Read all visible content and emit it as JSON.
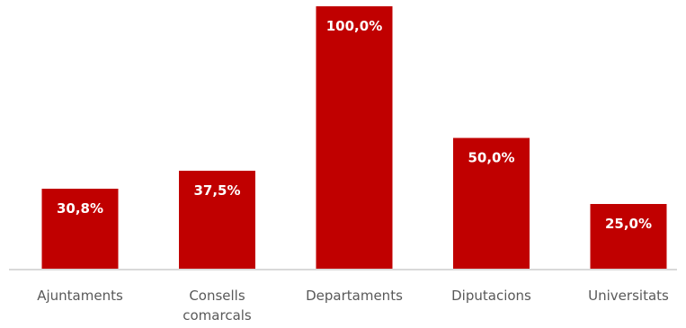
{
  "chart_data": {
    "type": "bar",
    "title": "",
    "xlabel": "",
    "ylabel": "",
    "categories": [
      [
        "Ajuntaments"
      ],
      [
        "Consells",
        "comarcals"
      ],
      [
        "Departaments"
      ],
      [
        "Diputacions"
      ],
      [
        "Universitats"
      ]
    ],
    "values": [
      30.8,
      37.5,
      100.0,
      50.0,
      25.0
    ],
    "value_labels": [
      "30,8%",
      "37,5%",
      "100,0%",
      "50,0%",
      "25,0%"
    ],
    "ylim": [
      0,
      100
    ],
    "grid": false,
    "legend": "none",
    "bar_color": "#c00000",
    "value_label_color": "#ffffff",
    "category_label_color": "#595959",
    "axis_color": "#d9d9d9"
  }
}
